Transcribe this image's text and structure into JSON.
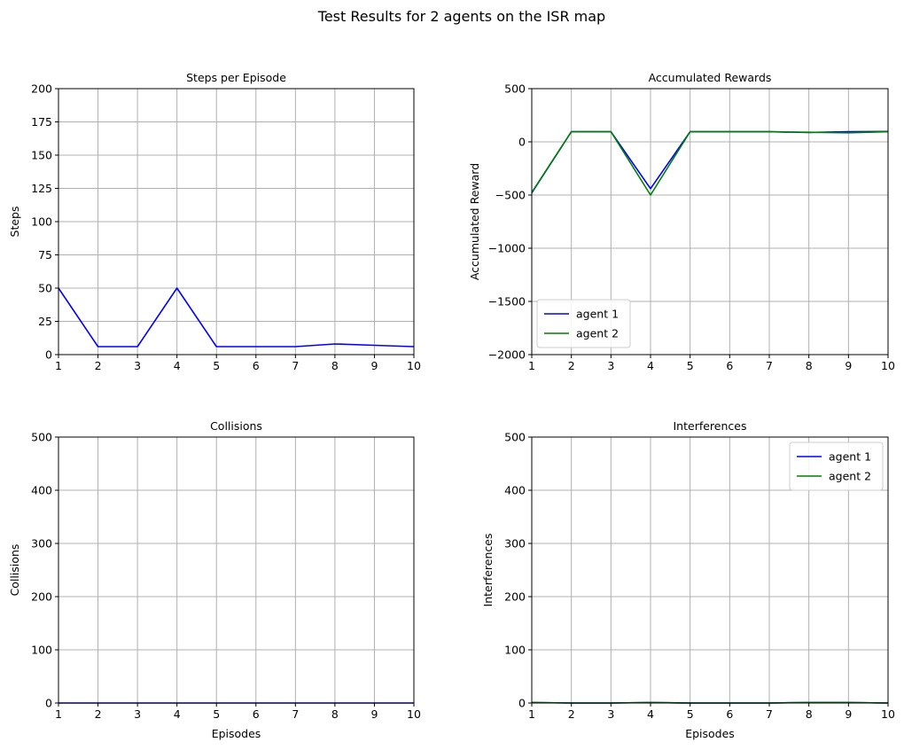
{
  "figure": {
    "suptitle": "Test Results for 2 agents on the ISR map"
  },
  "colors": {
    "agent1": "#0000ff",
    "agent2": "#008000",
    "grid": "#b0b0b0"
  },
  "chart_data": [
    {
      "type": "line",
      "title": "Steps per Episode",
      "xlabel": "",
      "ylabel": "Steps",
      "xlim": [
        1,
        10
      ],
      "ylim": [
        0,
        200
      ],
      "xticks": [
        1,
        2,
        3,
        4,
        5,
        6,
        7,
        8,
        9,
        10
      ],
      "yticks": [
        0,
        25,
        50,
        75,
        100,
        125,
        150,
        175,
        200
      ],
      "grid": true,
      "legend": null,
      "x": [
        1,
        2,
        3,
        4,
        5,
        6,
        7,
        8,
        9,
        10
      ],
      "series": [
        {
          "values": [
            50,
            6,
            6,
            50,
            6,
            6,
            6,
            8,
            7,
            6
          ],
          "color": "#0000ff"
        }
      ]
    },
    {
      "type": "line",
      "title": "Accumulated Rewards",
      "xlabel": "",
      "ylabel": "Accumulated Reward",
      "xlim": [
        1,
        10
      ],
      "ylim": [
        -2000,
        500
      ],
      "xticks": [
        1,
        2,
        3,
        4,
        5,
        6,
        7,
        8,
        9,
        10
      ],
      "yticks": [
        -2000,
        -1500,
        -1000,
        -500,
        0,
        500
      ],
      "ytick_labels": [
        "−2000",
        "−1500",
        "−1000",
        "−500",
        "0",
        "500"
      ],
      "grid": true,
      "legend": "lower-left",
      "x": [
        1,
        2,
        3,
        4,
        5,
        6,
        7,
        8,
        9,
        10
      ],
      "series": [
        {
          "name": "agent 1",
          "values": [
            -480,
            95,
            95,
            -440,
            95,
            95,
            95,
            88,
            95,
            97
          ],
          "color": "#0000ff"
        },
        {
          "name": "agent 2",
          "values": [
            -475,
            95,
            95,
            -500,
            95,
            95,
            95,
            90,
            85,
            95
          ],
          "color": "#008000"
        }
      ]
    },
    {
      "type": "line",
      "title": "Collisions",
      "xlabel": "Episodes",
      "ylabel": "Collisions",
      "xlim": [
        1,
        10
      ],
      "ylim": [
        0,
        500
      ],
      "xticks": [
        1,
        2,
        3,
        4,
        5,
        6,
        7,
        8,
        9,
        10
      ],
      "yticks": [
        0,
        100,
        200,
        300,
        400,
        500
      ],
      "grid": true,
      "legend": null,
      "x": [
        1,
        2,
        3,
        4,
        5,
        6,
        7,
        8,
        9,
        10
      ],
      "series": [
        {
          "values": [
            0,
            0,
            0,
            0,
            0,
            0,
            0,
            0,
            0,
            0
          ],
          "color": "#0000ff"
        }
      ]
    },
    {
      "type": "line",
      "title": "Interferences",
      "xlabel": "Episodes",
      "ylabel": "Interferences",
      "xlim": [
        1,
        10
      ],
      "ylim": [
        0,
        500
      ],
      "xticks": [
        1,
        2,
        3,
        4,
        5,
        6,
        7,
        8,
        9,
        10
      ],
      "yticks": [
        0,
        100,
        200,
        300,
        400,
        500
      ],
      "grid": true,
      "legend": "upper-right",
      "x": [
        1,
        2,
        3,
        4,
        5,
        6,
        7,
        8,
        9,
        10
      ],
      "series": [
        {
          "name": "agent 1",
          "values": [
            1,
            0,
            0,
            1,
            0,
            0,
            0,
            1,
            1,
            0
          ],
          "color": "#0000ff"
        },
        {
          "name": "agent 2",
          "values": [
            1,
            0,
            0,
            1,
            0,
            0,
            0,
            1,
            1,
            0
          ],
          "color": "#008000"
        }
      ]
    }
  ]
}
